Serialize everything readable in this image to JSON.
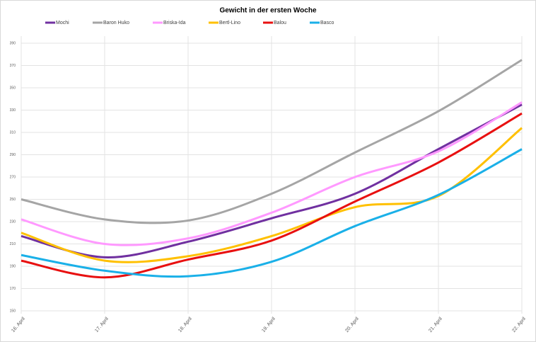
{
  "chart_data": {
    "type": "line",
    "title": "Gewicht in der ersten Woche",
    "categories": [
      "16. April",
      "17. April",
      "18. April",
      "19. April",
      "20. April",
      "21. April",
      "22. April"
    ],
    "series": [
      {
        "name": "Mochi",
        "color": "#7030a0",
        "values": [
          217,
          198,
          212,
          233,
          255,
          295,
          335
        ]
      },
      {
        "name": "Baron Huko",
        "color": "#a5a5a5",
        "values": [
          250,
          232,
          231,
          255,
          292,
          329,
          375
        ]
      },
      {
        "name": "Briska-Ida",
        "color": "#ff99ff",
        "values": [
          232,
          210,
          215,
          238,
          270,
          293,
          337
        ]
      },
      {
        "name": "Bertl-Lino",
        "color": "#ffc000",
        "values": [
          220,
          195,
          199,
          217,
          243,
          253,
          314
        ]
      },
      {
        "name": "Balou",
        "color": "#e81010",
        "values": [
          195,
          180,
          196,
          213,
          248,
          283,
          327
        ]
      },
      {
        "name": "Basco",
        "color": "#1ab0e8",
        "values": [
          200,
          186,
          181,
          194,
          226,
          254,
          295
        ]
      }
    ],
    "ylim": [
      150,
      390
    ],
    "yticks": [
      150,
      170,
      190,
      210,
      230,
      250,
      270,
      290,
      310,
      330,
      350,
      370,
      390
    ],
    "grid": true,
    "legend": "top",
    "smooth": true
  }
}
